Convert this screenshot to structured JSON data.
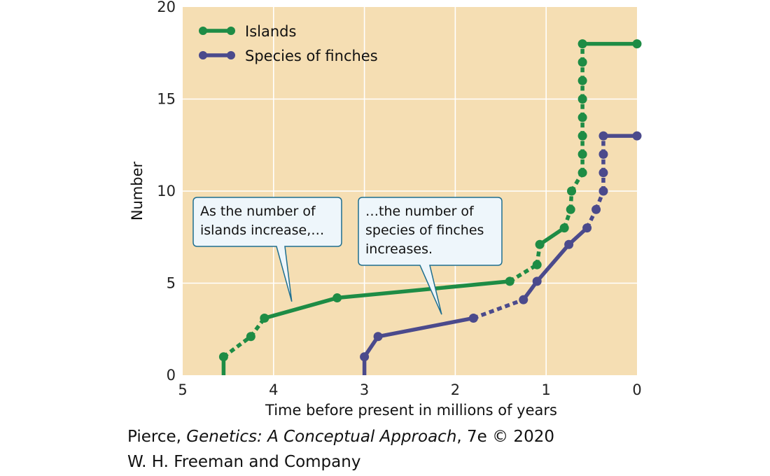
{
  "chart_data": {
    "type": "line",
    "xlabel": "Time before present in millions of years",
    "ylabel": "Number",
    "xlim": [
      5,
      0
    ],
    "ylim": [
      0,
      20
    ],
    "x_ticks": [
      5,
      4,
      3,
      2,
      1,
      0
    ],
    "y_ticks": [
      0,
      5,
      10,
      15,
      20
    ],
    "x_reversed": true,
    "grid": true,
    "legend_position": "top-left",
    "background_color": "#f5deb3",
    "series": [
      {
        "name": "Islands",
        "color": "#1e8c45",
        "points": [
          [
            4.55,
            0
          ],
          [
            4.55,
            1
          ],
          [
            4.25,
            2.1
          ],
          [
            4.1,
            3.1
          ],
          [
            3.3,
            4.2
          ],
          [
            1.4,
            5.1
          ],
          [
            1.1,
            6.0
          ],
          [
            1.07,
            7.1
          ],
          [
            0.8,
            8.0
          ],
          [
            0.73,
            9.0
          ],
          [
            0.72,
            10.0
          ],
          [
            0.6,
            11.0
          ],
          [
            0.6,
            12.0
          ],
          [
            0.6,
            13.0
          ],
          [
            0.6,
            14.0
          ],
          [
            0.6,
            15.0
          ],
          [
            0.6,
            16.0
          ],
          [
            0.6,
            17.0
          ],
          [
            0.6,
            18.0
          ],
          [
            0.0,
            18.0
          ]
        ],
        "segments": [
          "solid",
          "dashed",
          "dashed",
          "solid",
          "solid",
          "dashed",
          "dashed",
          "solid",
          "dashed",
          "dashed",
          "dashed",
          "dashed",
          "dashed",
          "dashed",
          "dashed",
          "dashed",
          "dashed",
          "dashed",
          "solid"
        ]
      },
      {
        "name": "Species of finches",
        "color": "#4b4a8c",
        "points": [
          [
            3.0,
            0
          ],
          [
            3.0,
            1
          ],
          [
            2.85,
            2.1
          ],
          [
            1.8,
            3.1
          ],
          [
            1.25,
            4.1
          ],
          [
            1.1,
            5.1
          ],
          [
            0.75,
            7.1
          ],
          [
            0.55,
            8.0
          ],
          [
            0.45,
            9.0
          ],
          [
            0.37,
            10.0
          ],
          [
            0.37,
            11.0
          ],
          [
            0.37,
            12.0
          ],
          [
            0.37,
            13.0
          ],
          [
            0.0,
            13.0
          ]
        ],
        "segments": [
          "solid",
          "solid",
          "solid",
          "dashed",
          "solid",
          "solid",
          "solid",
          "dashed",
          "dashed",
          "dashed",
          "dashed",
          "dashed",
          "solid"
        ]
      }
    ],
    "annotations": [
      {
        "text_lines": [
          "As the number of",
          "islands increase,…"
        ],
        "pointer_target": [
          3.8,
          4.0
        ]
      },
      {
        "text_lines": [
          "…the number of",
          "species of finches",
          "increases."
        ],
        "pointer_target": [
          2.15,
          3.3
        ]
      }
    ]
  },
  "credit": {
    "author": "Pierce, ",
    "book_title": "Genetics: A Conceptual Approach",
    "edition": ", 7e © 2020",
    "publisher": "W. H. Freeman and Company"
  }
}
